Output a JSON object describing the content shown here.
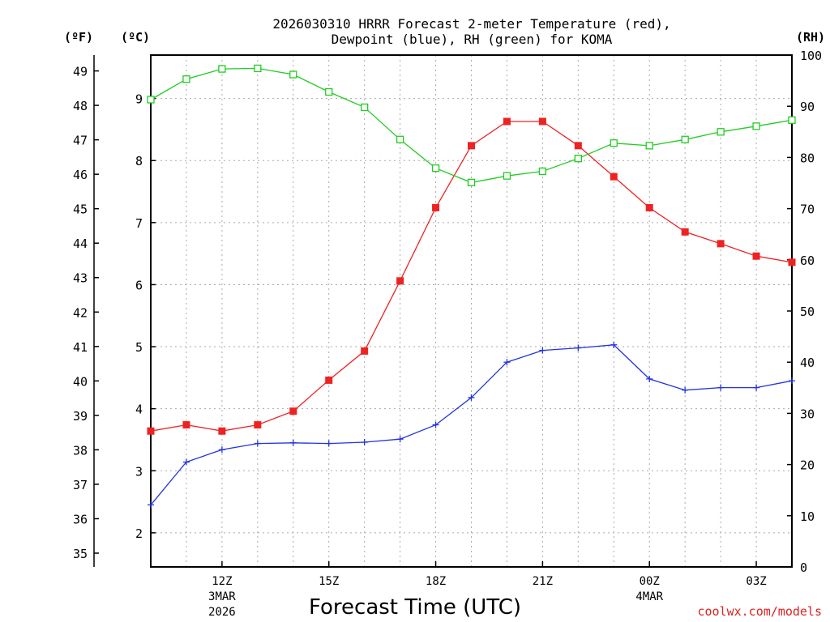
{
  "chart_data": {
    "type": "line",
    "title": [
      "2026030310 HRRR Forecast 2-meter Temperature (red),",
      "Dewpoint (blue), RH (green) for KOMA"
    ],
    "xlabel": "Forecast Time (UTC)",
    "credit": "coolwx.com/models",
    "unit_labels": {
      "fahrenheit": "(ºF)",
      "celsius": "(ºC)",
      "rh": "(RH)"
    },
    "x_hours_from_10z": [
      0,
      1,
      2,
      3,
      4,
      5,
      6,
      7,
      8,
      9,
      10,
      11,
      12,
      13,
      14,
      15,
      16,
      17,
      18
    ],
    "x_ticks": [
      {
        "hour": 2,
        "label": "12Z",
        "sub": [
          "3MAR",
          "2026"
        ]
      },
      {
        "hour": 5,
        "label": "15Z",
        "sub": []
      },
      {
        "hour": 8,
        "label": "18Z",
        "sub": []
      },
      {
        "hour": 11,
        "label": "21Z",
        "sub": []
      },
      {
        "hour": 14,
        "label": "00Z",
        "sub": [
          "4MAR"
        ]
      },
      {
        "hour": 17,
        "label": "03Z",
        "sub": []
      }
    ],
    "xlim": [
      0,
      18
    ],
    "celsius_axis": {
      "range": [
        1.45,
        9.7
      ],
      "ticks": [
        2,
        3,
        4,
        5,
        6,
        7,
        8,
        9
      ]
    },
    "fahrenheit_axis": {
      "range": [
        34.6,
        49.46
      ],
      "ticks": [
        35,
        36,
        37,
        38,
        39,
        40,
        41,
        42,
        43,
        44,
        45,
        46,
        47,
        48,
        49
      ]
    },
    "rh_axis": {
      "range": [
        0,
        100
      ],
      "ticks": [
        0,
        10,
        20,
        30,
        40,
        50,
        60,
        70,
        80,
        90,
        100
      ]
    },
    "grid": true,
    "series": [
      {
        "name": "Temperature",
        "units": "C",
        "axis": "celsius",
        "color": "#ee2222",
        "marker": "filled-square",
        "values": [
          3.64,
          3.74,
          3.64,
          3.74,
          3.96,
          4.46,
          4.93,
          6.06,
          7.24,
          8.24,
          8.63,
          8.63,
          8.24,
          7.74,
          7.24,
          6.85,
          6.66,
          6.46,
          6.36
        ]
      },
      {
        "name": "Dewpoint",
        "units": "C",
        "axis": "celsius",
        "color": "#2233dd",
        "marker": "plus",
        "values": [
          2.45,
          3.14,
          3.34,
          3.44,
          3.45,
          3.44,
          3.46,
          3.51,
          3.74,
          4.18,
          4.75,
          4.94,
          4.98,
          5.03,
          4.48,
          4.3,
          4.34,
          4.34,
          4.45
        ]
      },
      {
        "name": "RH",
        "units": "%",
        "axis": "rh",
        "color": "#22cc22",
        "marker": "open-square",
        "values": [
          91.3,
          95.3,
          97.3,
          97.4,
          96.2,
          92.8,
          89.8,
          83.5,
          77.9,
          75.1,
          76.4,
          77.3,
          79.8,
          82.8,
          82.3,
          83.5,
          85.0,
          86.1,
          87.3
        ]
      }
    ]
  }
}
